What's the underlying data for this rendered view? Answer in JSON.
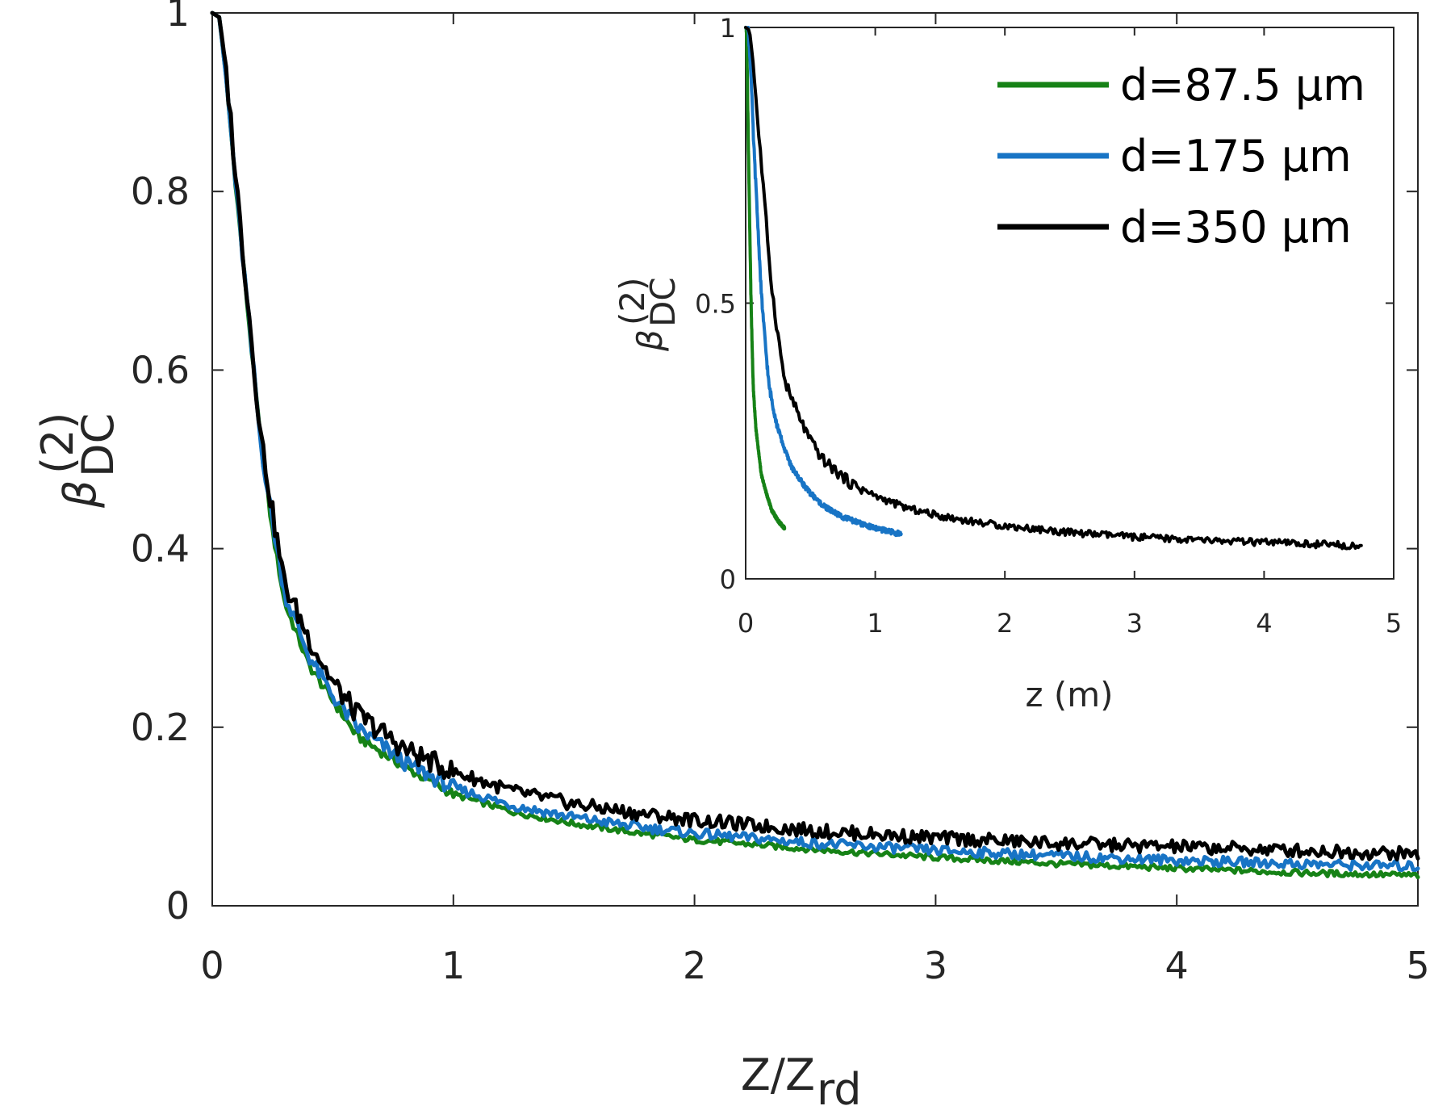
{
  "chart_data": [
    {
      "type": "line",
      "x_axis": {
        "label_main": "Z/Z",
        "label_sub": "rd",
        "range": [
          0,
          5
        ],
        "ticks": [
          0,
          1,
          2,
          3,
          4,
          5
        ],
        "tick_labels": [
          "0",
          "1",
          "2",
          "3",
          "4",
          "5"
        ]
      },
      "y_axis": {
        "label_symbol": "β",
        "label_sup": "(2)",
        "label_sub": "DC",
        "range": [
          0,
          1
        ],
        "ticks": [
          0,
          0.2,
          0.4,
          0.6,
          0.8,
          1
        ],
        "tick_labels": [
          "0",
          "0.2",
          "0.4",
          "0.6",
          "0.8",
          "1"
        ]
      },
      "grid": false,
      "series": [
        {
          "name": "d=87.5 μm",
          "color": "#168216",
          "x": [
            0,
            0.03,
            0.06,
            0.1,
            0.15,
            0.2,
            0.25,
            0.3,
            0.4,
            0.5,
            0.6,
            0.8,
            1.0,
            1.25,
            1.5,
            1.75,
            2.0,
            2.5,
            3.0,
            3.5,
            4.0,
            4.5,
            5.0
          ],
          "y": [
            1.0,
            0.995,
            0.92,
            0.8,
            0.66,
            0.52,
            0.42,
            0.34,
            0.27,
            0.23,
            0.19,
            0.155,
            0.125,
            0.105,
            0.092,
            0.082,
            0.074,
            0.063,
            0.054,
            0.047,
            0.042,
            0.037,
            0.034
          ]
        },
        {
          "name": "d=175 μm",
          "color": "#1874c5",
          "x": [
            0,
            0.03,
            0.06,
            0.1,
            0.15,
            0.2,
            0.25,
            0.3,
            0.4,
            0.5,
            0.6,
            0.8,
            1.0,
            1.25,
            1.5,
            1.75,
            2.0,
            2.5,
            3.0,
            3.5,
            4.0,
            4.5,
            5.0
          ],
          "y": [
            1.0,
            0.995,
            0.92,
            0.8,
            0.66,
            0.52,
            0.43,
            0.35,
            0.28,
            0.235,
            0.2,
            0.16,
            0.132,
            0.112,
            0.099,
            0.089,
            0.081,
            0.07,
            0.062,
            0.056,
            0.051,
            0.047,
            0.044
          ]
        },
        {
          "name": "d=350 μm",
          "color": "#000000",
          "x": [
            0,
            0.03,
            0.06,
            0.1,
            0.15,
            0.2,
            0.25,
            0.3,
            0.4,
            0.5,
            0.6,
            0.8,
            1.0,
            1.25,
            1.5,
            1.75,
            2.0,
            2.5,
            3.0,
            3.5,
            4.0,
            4.5,
            5.0
          ],
          "y": [
            1.0,
            0.995,
            0.93,
            0.81,
            0.67,
            0.53,
            0.44,
            0.36,
            0.3,
            0.25,
            0.215,
            0.175,
            0.15,
            0.128,
            0.114,
            0.104,
            0.096,
            0.084,
            0.076,
            0.07,
            0.066,
            0.062,
            0.058
          ]
        }
      ]
    },
    {
      "type": "line",
      "x_axis": {
        "label": "z (m)",
        "range": [
          0,
          5
        ],
        "ticks": [
          0,
          1,
          2,
          3,
          4,
          5
        ],
        "tick_labels": [
          "0",
          "1",
          "2",
          "3",
          "4",
          "5"
        ]
      },
      "y_axis": {
        "label_symbol": "β",
        "label_sup": "(2)",
        "label_sub": "DC",
        "range": [
          0,
          1
        ],
        "ticks": [
          0,
          0.5,
          1
        ],
        "tick_labels": [
          "0",
          "0.5",
          "1"
        ]
      },
      "grid": false,
      "legend": {
        "placement": "top-right",
        "entries": [
          "d=87.5 μm",
          "d=175 μm",
          "d=350 μm"
        ]
      },
      "series": [
        {
          "name": "d=87.5 μm",
          "color": "#168216",
          "x": [
            0,
            0.006,
            0.012,
            0.02,
            0.03,
            0.04,
            0.05,
            0.06,
            0.08,
            0.1,
            0.12,
            0.16,
            0.2,
            0.25,
            0.3
          ],
          "y": [
            1.0,
            0.995,
            0.92,
            0.8,
            0.66,
            0.52,
            0.42,
            0.34,
            0.27,
            0.23,
            0.19,
            0.155,
            0.125,
            0.105,
            0.092
          ]
        },
        {
          "name": "d=175 μm",
          "color": "#1874c5",
          "x": [
            0,
            0.02,
            0.04,
            0.06,
            0.09,
            0.12,
            0.15,
            0.18,
            0.24,
            0.3,
            0.36,
            0.48,
            0.6,
            0.75,
            0.9,
            1.05,
            1.2
          ],
          "y": [
            1.0,
            0.995,
            0.92,
            0.8,
            0.66,
            0.52,
            0.43,
            0.35,
            0.28,
            0.235,
            0.2,
            0.16,
            0.132,
            0.112,
            0.099,
            0.089,
            0.081
          ]
        },
        {
          "name": "d=350 μm",
          "color": "#000000",
          "x": [
            0,
            0.03,
            0.06,
            0.1,
            0.15,
            0.2,
            0.25,
            0.3,
            0.4,
            0.5,
            0.6,
            0.8,
            1.0,
            1.25,
            1.5,
            1.75,
            2.0,
            2.5,
            3.0,
            3.5,
            4.0,
            4.5,
            4.75
          ],
          "y": [
            1.0,
            0.995,
            0.93,
            0.81,
            0.67,
            0.53,
            0.44,
            0.36,
            0.3,
            0.25,
            0.215,
            0.175,
            0.15,
            0.128,
            0.114,
            0.104,
            0.096,
            0.084,
            0.076,
            0.07,
            0.066,
            0.062,
            0.06
          ]
        }
      ]
    }
  ]
}
